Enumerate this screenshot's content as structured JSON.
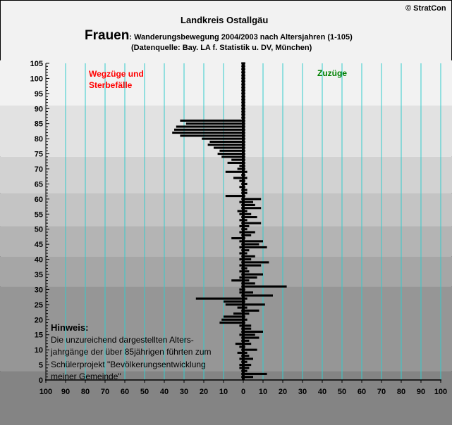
{
  "header": {
    "copyright": "© StratCon",
    "region": "Landkreis Ostallgäu",
    "title_main": "Frauen",
    "title_rest": ": Wanderungsbewegung 2004/2003 nach Altersjahren (1-105)",
    "source": "(Datenquelle: Bay. LA f. Statistik u. DV, München)"
  },
  "note": {
    "heading": "Hinweis:",
    "lines": [
      "Die unzureichend dargestellten Alters-",
      "jahrgänge der über 85jährigen führten zum",
      "Schülerprojekt \"Bevölkerungsentwicklung",
      "meiner Gemeinde\""
    ]
  },
  "colors": {
    "bar": "#000000",
    "grid": "#33cccc",
    "left_label": "#ff0000",
    "right_label": "#008000"
  },
  "chart_data": {
    "type": "bar",
    "orientation": "horizontal",
    "annotations": {
      "left": [
        "Wegzüge und",
        "Sterbefälle"
      ],
      "right": "Zuzüge"
    },
    "x_ticks": [
      "100",
      "90",
      "80",
      "70",
      "60",
      "50",
      "40",
      "30",
      "20",
      "10",
      "0",
      "10",
      "20",
      "30",
      "40",
      "50",
      "60",
      "70",
      "80",
      "90",
      "100"
    ],
    "xlim": [
      -100,
      100
    ],
    "ylim": [
      0,
      105
    ],
    "y_ticks": [
      0,
      5,
      10,
      15,
      20,
      25,
      30,
      35,
      40,
      45,
      50,
      55,
      60,
      65,
      70,
      75,
      80,
      85,
      90,
      95,
      100,
      105
    ],
    "grid": true,
    "bands": [
      {
        "from": 0,
        "to": 3,
        "color": "#848484"
      },
      {
        "from": 3,
        "to": 31,
        "color": "#969696"
      },
      {
        "from": 31,
        "to": 41,
        "color": "#a6a6a6"
      },
      {
        "from": 41,
        "to": 51,
        "color": "#b4b4b4"
      },
      {
        "from": 51,
        "to": 62,
        "color": "#c4c4c4"
      },
      {
        "from": 62,
        "to": 74,
        "color": "#d2d2d2"
      },
      {
        "from": 74,
        "to": 91,
        "color": "#e2e2e2"
      },
      {
        "from": 91,
        "to": 106,
        "color": "#f2f2f2"
      }
    ],
    "series": [
      {
        "values": [
          {
            "age": 1,
            "min": -1,
            "max": 5
          },
          {
            "age": 2,
            "min": -1,
            "max": 12
          },
          {
            "age": 3,
            "min": -1,
            "max": 2
          },
          {
            "age": 4,
            "min": -2,
            "max": 3
          },
          {
            "age": 5,
            "min": -2,
            "max": 4
          },
          {
            "age": 6,
            "min": -1,
            "max": 2
          },
          {
            "age": 7,
            "min": -2,
            "max": 5
          },
          {
            "age": 8,
            "min": -1,
            "max": 3
          },
          {
            "age": 9,
            "min": -3,
            "max": 2
          },
          {
            "age": 10,
            "min": -1,
            "max": 7
          },
          {
            "age": 11,
            "min": -2,
            "max": 1
          },
          {
            "age": 12,
            "min": -4,
            "max": 4
          },
          {
            "age": 13,
            "min": -1,
            "max": 3
          },
          {
            "age": 14,
            "min": -1,
            "max": 8
          },
          {
            "age": 15,
            "min": -2,
            "max": 6
          },
          {
            "age": 16,
            "min": -1,
            "max": 10
          },
          {
            "age": 17,
            "min": -1,
            "max": 4
          },
          {
            "age": 18,
            "min": -2,
            "max": 4
          },
          {
            "age": 19,
            "min": -12,
            "max": 1
          },
          {
            "age": 20,
            "min": -11,
            "max": 2
          },
          {
            "age": 21,
            "min": -10,
            "max": 1
          },
          {
            "age": 22,
            "min": -5,
            "max": 3
          },
          {
            "age": 23,
            "min": -1,
            "max": 8
          },
          {
            "age": 24,
            "min": -3,
            "max": 2
          },
          {
            "age": 25,
            "min": -9,
            "max": 11
          },
          {
            "age": 26,
            "min": -10,
            "max": 1
          },
          {
            "age": 27,
            "min": -24,
            "max": 2
          },
          {
            "age": 28,
            "min": -1,
            "max": 15
          },
          {
            "age": 29,
            "min": -2,
            "max": 5
          },
          {
            "age": 30,
            "min": -2,
            "max": 1
          },
          {
            "age": 31,
            "min": -1,
            "max": 22
          },
          {
            "age": 32,
            "min": -1,
            "max": 6
          },
          {
            "age": 33,
            "min": -6,
            "max": 3
          },
          {
            "age": 34,
            "min": -2,
            "max": 7
          },
          {
            "age": 35,
            "min": -1,
            "max": 10
          },
          {
            "age": 36,
            "min": -2,
            "max": 3
          },
          {
            "age": 37,
            "min": -1,
            "max": 2
          },
          {
            "age": 38,
            "min": -2,
            "max": 9
          },
          {
            "age": 39,
            "min": -1,
            "max": 13
          },
          {
            "age": 40,
            "min": -2,
            "max": 4
          },
          {
            "age": 41,
            "min": -1,
            "max": 6
          },
          {
            "age": 42,
            "min": -2,
            "max": 2
          },
          {
            "age": 43,
            "min": -1,
            "max": 3
          },
          {
            "age": 44,
            "min": -2,
            "max": 12
          },
          {
            "age": 45,
            "min": -1,
            "max": 8
          },
          {
            "age": 46,
            "min": -2,
            "max": 10
          },
          {
            "age": 47,
            "min": -6,
            "max": 1
          },
          {
            "age": 48,
            "min": -1,
            "max": 4
          },
          {
            "age": 49,
            "min": -2,
            "max": 6
          },
          {
            "age": 50,
            "min": -1,
            "max": 2
          },
          {
            "age": 51,
            "min": -2,
            "max": 3
          },
          {
            "age": 52,
            "min": -1,
            "max": 9
          },
          {
            "age": 53,
            "min": -2,
            "max": 2
          },
          {
            "age": 54,
            "min": -1,
            "max": 7
          },
          {
            "age": 55,
            "min": -2,
            "max": 4
          },
          {
            "age": 56,
            "min": -3,
            "max": 2
          },
          {
            "age": 57,
            "min": -1,
            "max": 9
          },
          {
            "age": 58,
            "min": -1,
            "max": 6
          },
          {
            "age": 59,
            "min": -2,
            "max": 5
          },
          {
            "age": 60,
            "min": -1,
            "max": 9
          },
          {
            "age": 61,
            "min": -9,
            "max": 1
          },
          {
            "age": 62,
            "min": -1,
            "max": 2
          },
          {
            "age": 63,
            "min": -1,
            "max": 2
          },
          {
            "age": 64,
            "min": -2,
            "max": 1
          },
          {
            "age": 65,
            "min": -1,
            "max": 2
          },
          {
            "age": 66,
            "min": -2,
            "max": 1
          },
          {
            "age": 67,
            "min": -5,
            "max": 2
          },
          {
            "age": 68,
            "min": -1,
            "max": 1
          },
          {
            "age": 69,
            "min": -9,
            "max": 2
          },
          {
            "age": 70,
            "min": -3,
            "max": 1
          },
          {
            "age": 71,
            "min": -2,
            "max": 1
          },
          {
            "age": 72,
            "min": -8,
            "max": 1
          },
          {
            "age": 73,
            "min": -6,
            "max": 1
          },
          {
            "age": 74,
            "min": -11,
            "max": 1
          },
          {
            "age": 75,
            "min": -13,
            "max": 1
          },
          {
            "age": 76,
            "min": -12,
            "max": 1
          },
          {
            "age": 77,
            "min": -15,
            "max": 1
          },
          {
            "age": 78,
            "min": -18,
            "max": 1
          },
          {
            "age": 79,
            "min": -17,
            "max": 1
          },
          {
            "age": 80,
            "min": -21,
            "max": 1
          },
          {
            "age": 81,
            "min": -32,
            "max": 1
          },
          {
            "age": 82,
            "min": -36,
            "max": 1
          },
          {
            "age": 83,
            "min": -35,
            "max": 1
          },
          {
            "age": 84,
            "min": -34,
            "max": 1
          },
          {
            "age": 85,
            "min": -29,
            "max": 1
          },
          {
            "age": 86,
            "min": -32,
            "max": 1
          },
          {
            "age": 87,
            "min": -1,
            "max": 1
          },
          {
            "age": 88,
            "min": -1,
            "max": 1
          },
          {
            "age": 89,
            "min": -1,
            "max": 1
          },
          {
            "age": 90,
            "min": -1,
            "max": 1
          },
          {
            "age": 91,
            "min": -1,
            "max": 1
          },
          {
            "age": 92,
            "min": -1,
            "max": 1
          },
          {
            "age": 93,
            "min": -1,
            "max": 1
          },
          {
            "age": 94,
            "min": -1,
            "max": 1
          },
          {
            "age": 95,
            "min": -1,
            "max": 1
          },
          {
            "age": 96,
            "min": -1,
            "max": 1
          },
          {
            "age": 97,
            "min": -1,
            "max": 1
          },
          {
            "age": 98,
            "min": -1,
            "max": 1
          },
          {
            "age": 99,
            "min": -1,
            "max": 1
          },
          {
            "age": 100,
            "min": -1,
            "max": 1
          },
          {
            "age": 101,
            "min": -1,
            "max": 1
          },
          {
            "age": 102,
            "min": -1,
            "max": 1
          },
          {
            "age": 103,
            "min": -1,
            "max": 1
          },
          {
            "age": 104,
            "min": -1,
            "max": 1
          },
          {
            "age": 105,
            "min": -1,
            "max": 1
          }
        ]
      }
    ]
  }
}
